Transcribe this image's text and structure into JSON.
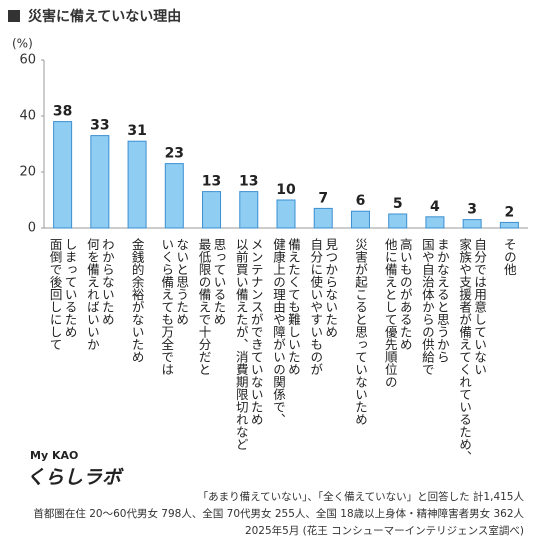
{
  "chart_data": {
    "type": "bar",
    "title": "災害に備えていない理由",
    "y_label": "(%)",
    "categories": [
      "面倒で後回しにして\nしまっているため",
      "何を備えればいいか\nわからないため",
      "金銭的余裕がないため",
      "いくら備えても万全では\nないと思うため",
      "最低限の備えで十分だと\n思っているため",
      "以前買い備えたが、消費期限切れなど\nメンテナンスができていないため",
      "健康上の理由や障がいの関係で、\n備えたくても難しいため",
      "自分に使いやすいものが\n見つからないため",
      "災害が起こると思っていないため",
      "他に備えとして優先順位の\n高いものがあるため",
      "国や自治体からの供給で\nまかなえると思うから",
      "家族や支援者が備えてくれているため、\n自分では用意していない",
      "その他"
    ],
    "values": [
      38,
      33,
      31,
      23,
      13,
      13,
      10,
      7,
      6,
      5,
      4,
      3,
      2
    ],
    "color": "#8fcdf3",
    "edge_color": "#3b8fd1",
    "ylim": [
      0,
      60
    ],
    "yticks": [
      0,
      20,
      40,
      60
    ],
    "grid": false
  },
  "logo": {
    "top": "My KAO",
    "bottom": "くらしラボ"
  },
  "notes": [
    "「あまり備えていない」、「全く備えていない」と回答した 計1,415人",
    "首都圏在住 20～60代男女 798人、全国 70代男女 255人、全国 18歳以上身体・精神障害者男女 362人",
    "2025年5月 (花王 コンシューマーインテリジェンス室調べ)"
  ]
}
